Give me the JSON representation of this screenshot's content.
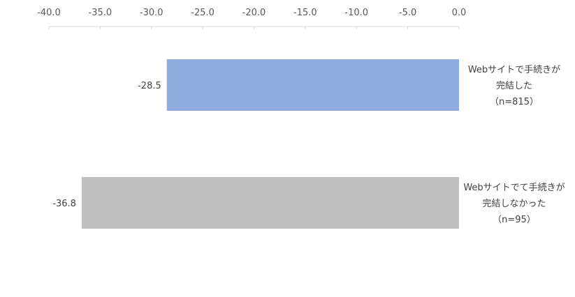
{
  "chart_data": {
    "type": "bar",
    "orientation": "horizontal",
    "x_axis_position": "top",
    "xlim": [
      -40.0,
      0.0
    ],
    "x_ticks": [
      "-40.0",
      "-35.0",
      "-30.0",
      "-25.0",
      "-20.0",
      "-15.0",
      "-10.0",
      "-5.0",
      "0.0"
    ],
    "grid": false,
    "categories": [
      [
        "Webサイトで手続きが",
        "完結した",
        "（n=815）"
      ],
      [
        "Webサイトでて手続きが",
        "完結しなかった",
        "（n=95）"
      ]
    ],
    "values": [
      -28.5,
      -36.8
    ],
    "value_labels": [
      "-28.5",
      "-36.8"
    ],
    "colors": [
      "#8FAADC",
      "#BFBFBF"
    ],
    "category_label_position": "right"
  }
}
